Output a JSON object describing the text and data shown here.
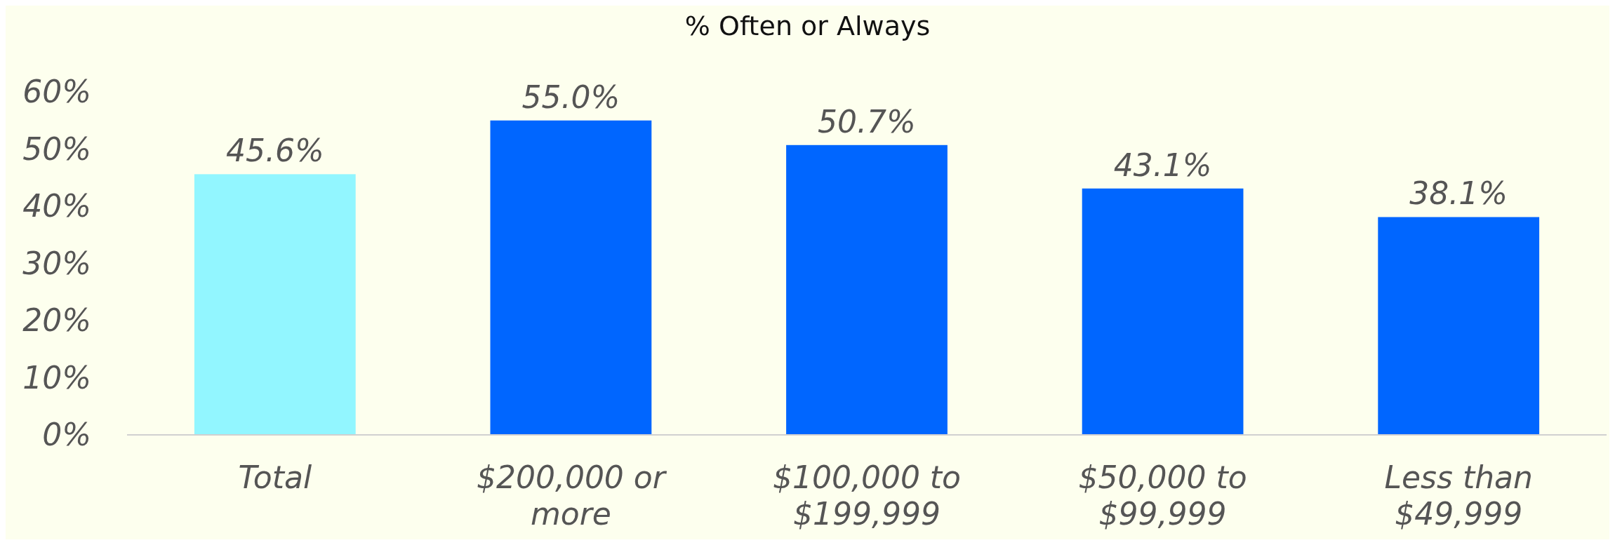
{
  "chart_data": {
    "type": "bar",
    "title": "% Often or Always",
    "categories": [
      "Total",
      "$200,000 or more",
      "$100,000 to $199,999",
      "$50,000 to $99,999",
      "Less than $49,999"
    ],
    "values": [
      45.6,
      55.0,
      50.7,
      43.1,
      38.1
    ],
    "colors": [
      "#92f6ff",
      "#0066ff",
      "#0066ff",
      "#0066ff",
      "#0066ff"
    ],
    "value_labels": [
      "45.6%",
      "55.0%",
      "50.7%",
      "43.1%",
      "38.1%"
    ],
    "ylim": [
      0,
      60
    ],
    "yticks": [
      {
        "value": 0,
        "label": "0%"
      },
      {
        "value": 10,
        "label": "10%"
      },
      {
        "value": 20,
        "label": "20%"
      },
      {
        "value": 30,
        "label": "30%"
      },
      {
        "value": 40,
        "label": "40%"
      },
      {
        "value": 50,
        "label": "50%"
      },
      {
        "value": 60,
        "label": "60%"
      }
    ],
    "grid": false
  }
}
